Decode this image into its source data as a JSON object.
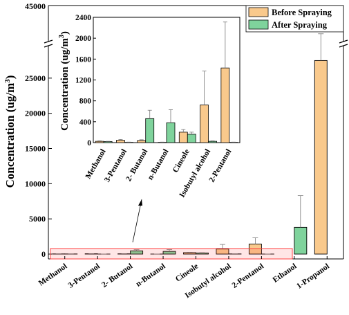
{
  "chart_data": [
    {
      "type": "bar",
      "ylabel": "Concentration (ug/m³)",
      "ylabel_parts": [
        "Concentration (ug/m",
        "3",
        ")"
      ],
      "categories": [
        "Methanol",
        "3-Pentanol",
        "2- Butanol",
        "n-Butanol",
        "Cineole",
        "Isobutyl alcohol",
        "2-Pentanol",
        "Ethanol",
        "1-Propanol"
      ],
      "yticks_lower": [
        0,
        5000,
        10000,
        15000,
        20000,
        25000
      ],
      "ytick_upper": 45000,
      "yaxis_break": true,
      "series": [
        {
          "name": "Before Spraying",
          "color": "#f9c98c",
          "values": [
            25,
            45,
            40,
            5,
            200,
            720,
            1430,
            0,
            27500
          ],
          "errors": [
            10,
            15,
            15,
            5,
            50,
            650,
            880,
            0,
            3800
          ]
        },
        {
          "name": "After Spraying",
          "color": "#7fd39c",
          "values": [
            20,
            5,
            460,
            380,
            160,
            25,
            5,
            3800,
            0
          ],
          "errors": [
            5,
            5,
            160,
            250,
            40,
            10,
            5,
            4500,
            0
          ]
        }
      ],
      "legend_position": "top-right"
    },
    {
      "type": "bar",
      "role": "inset",
      "ylabel": "Concentration (ug/m³)",
      "ylabel_parts": [
        "Concentration (ug/m",
        "3",
        ")"
      ],
      "categories": [
        "Methanol",
        "3-Pentanol",
        "2- Butanol",
        "n-Butanol",
        "Cineole",
        "Isobutyl alcohol",
        "2-Pentanol"
      ],
      "ylim": [
        0,
        2400
      ],
      "yticks": [
        0,
        400,
        800,
        1200,
        1600,
        2000,
        2400
      ],
      "series": [
        {
          "name": "Before Spraying",
          "color": "#f9c98c",
          "values": [
            25,
            45,
            40,
            5,
            200,
            720,
            1430
          ],
          "errors": [
            10,
            15,
            15,
            5,
            50,
            650,
            880
          ]
        },
        {
          "name": "After Spraying",
          "color": "#7fd39c",
          "values": [
            20,
            5,
            460,
            380,
            160,
            25,
            5
          ],
          "errors": [
            5,
            5,
            160,
            250,
            40,
            10,
            5
          ]
        }
      ]
    }
  ]
}
